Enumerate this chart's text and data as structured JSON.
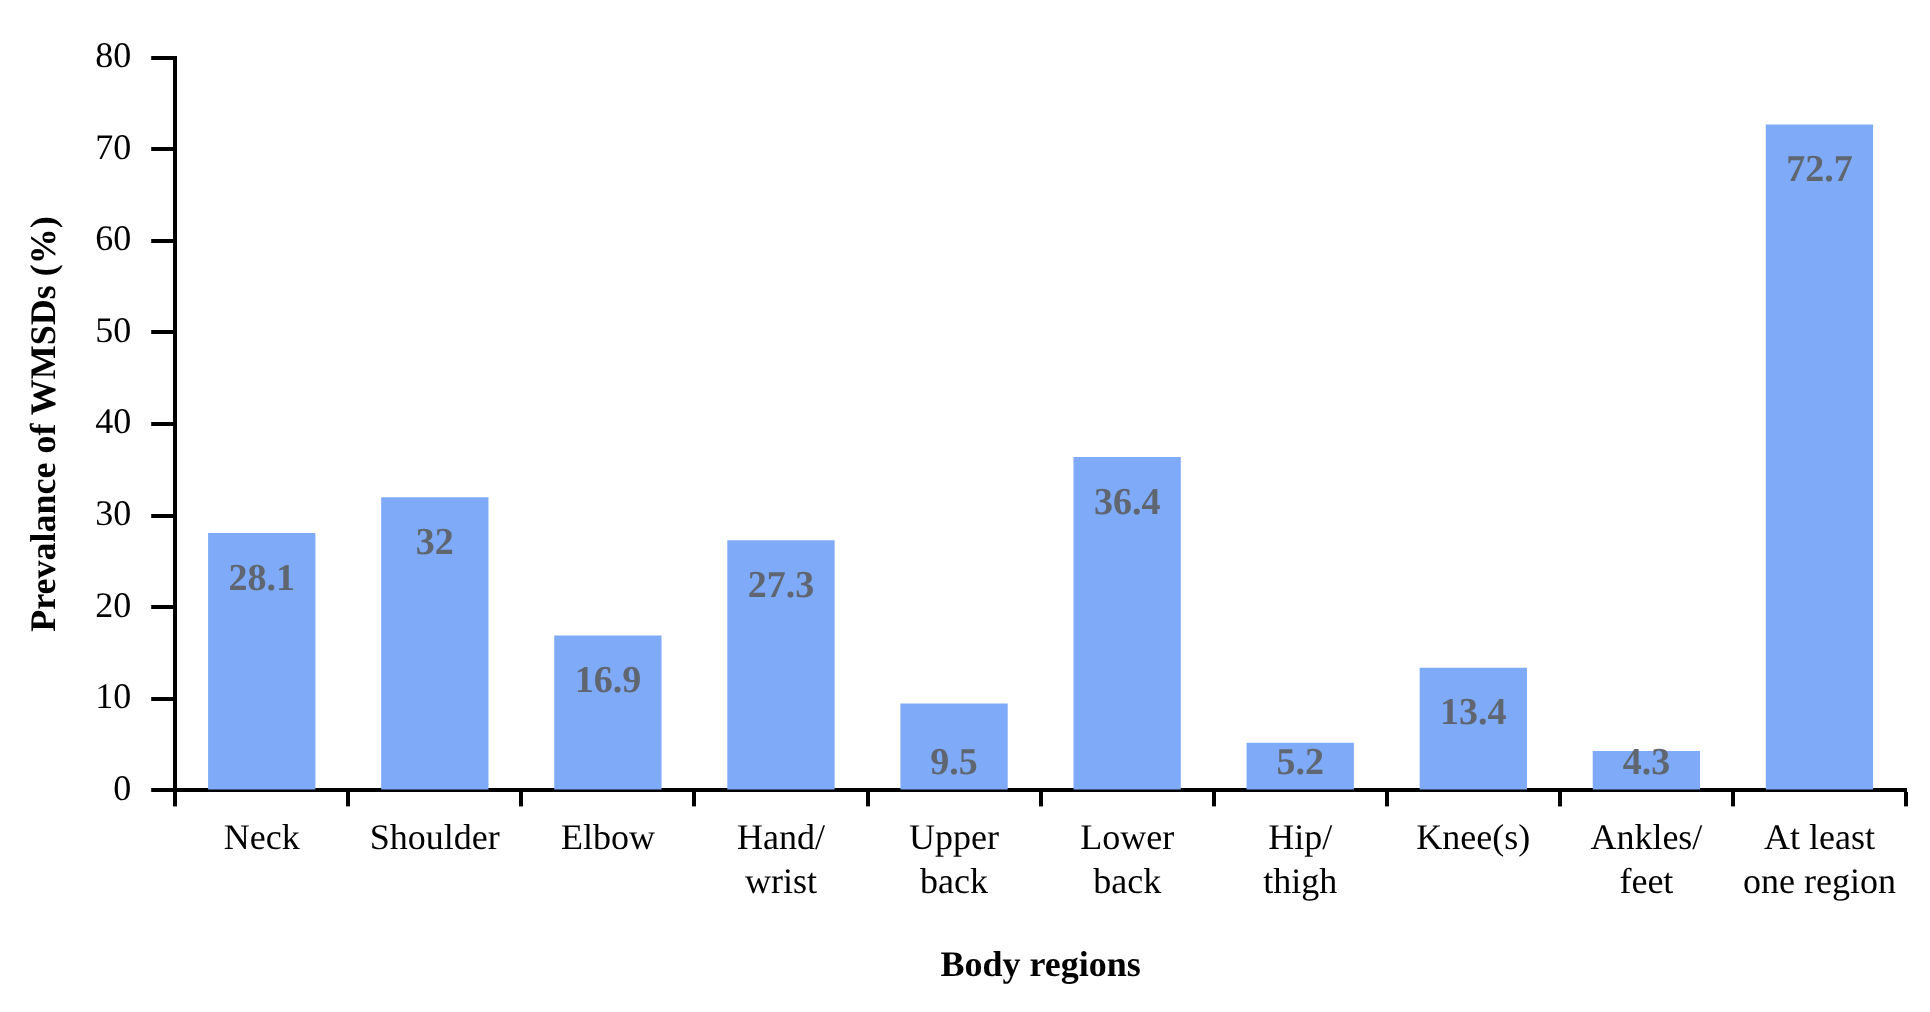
{
  "chart_data": {
    "type": "bar",
    "xlabel": "Body regions",
    "ylabel": "Prevalance of WMSDs (%)",
    "categories": [
      "Neck",
      "Shoulder",
      "Elbow",
      "Hand/ wrist",
      "Upper back",
      "Lower back",
      "Hip/ thigh",
      "Knee(s)",
      "Ankles/ feet",
      "At least one region"
    ],
    "values": [
      28.1,
      32,
      16.9,
      27.3,
      9.5,
      36.4,
      5.2,
      13.4,
      4.3,
      72.7
    ],
    "color": "#7faaf8",
    "ylim": [
      0,
      80
    ],
    "yticks": [
      0,
      10,
      20,
      30,
      40,
      50,
      60,
      70,
      80
    ],
    "grid": false,
    "legend": false,
    "data_labels": true
  }
}
